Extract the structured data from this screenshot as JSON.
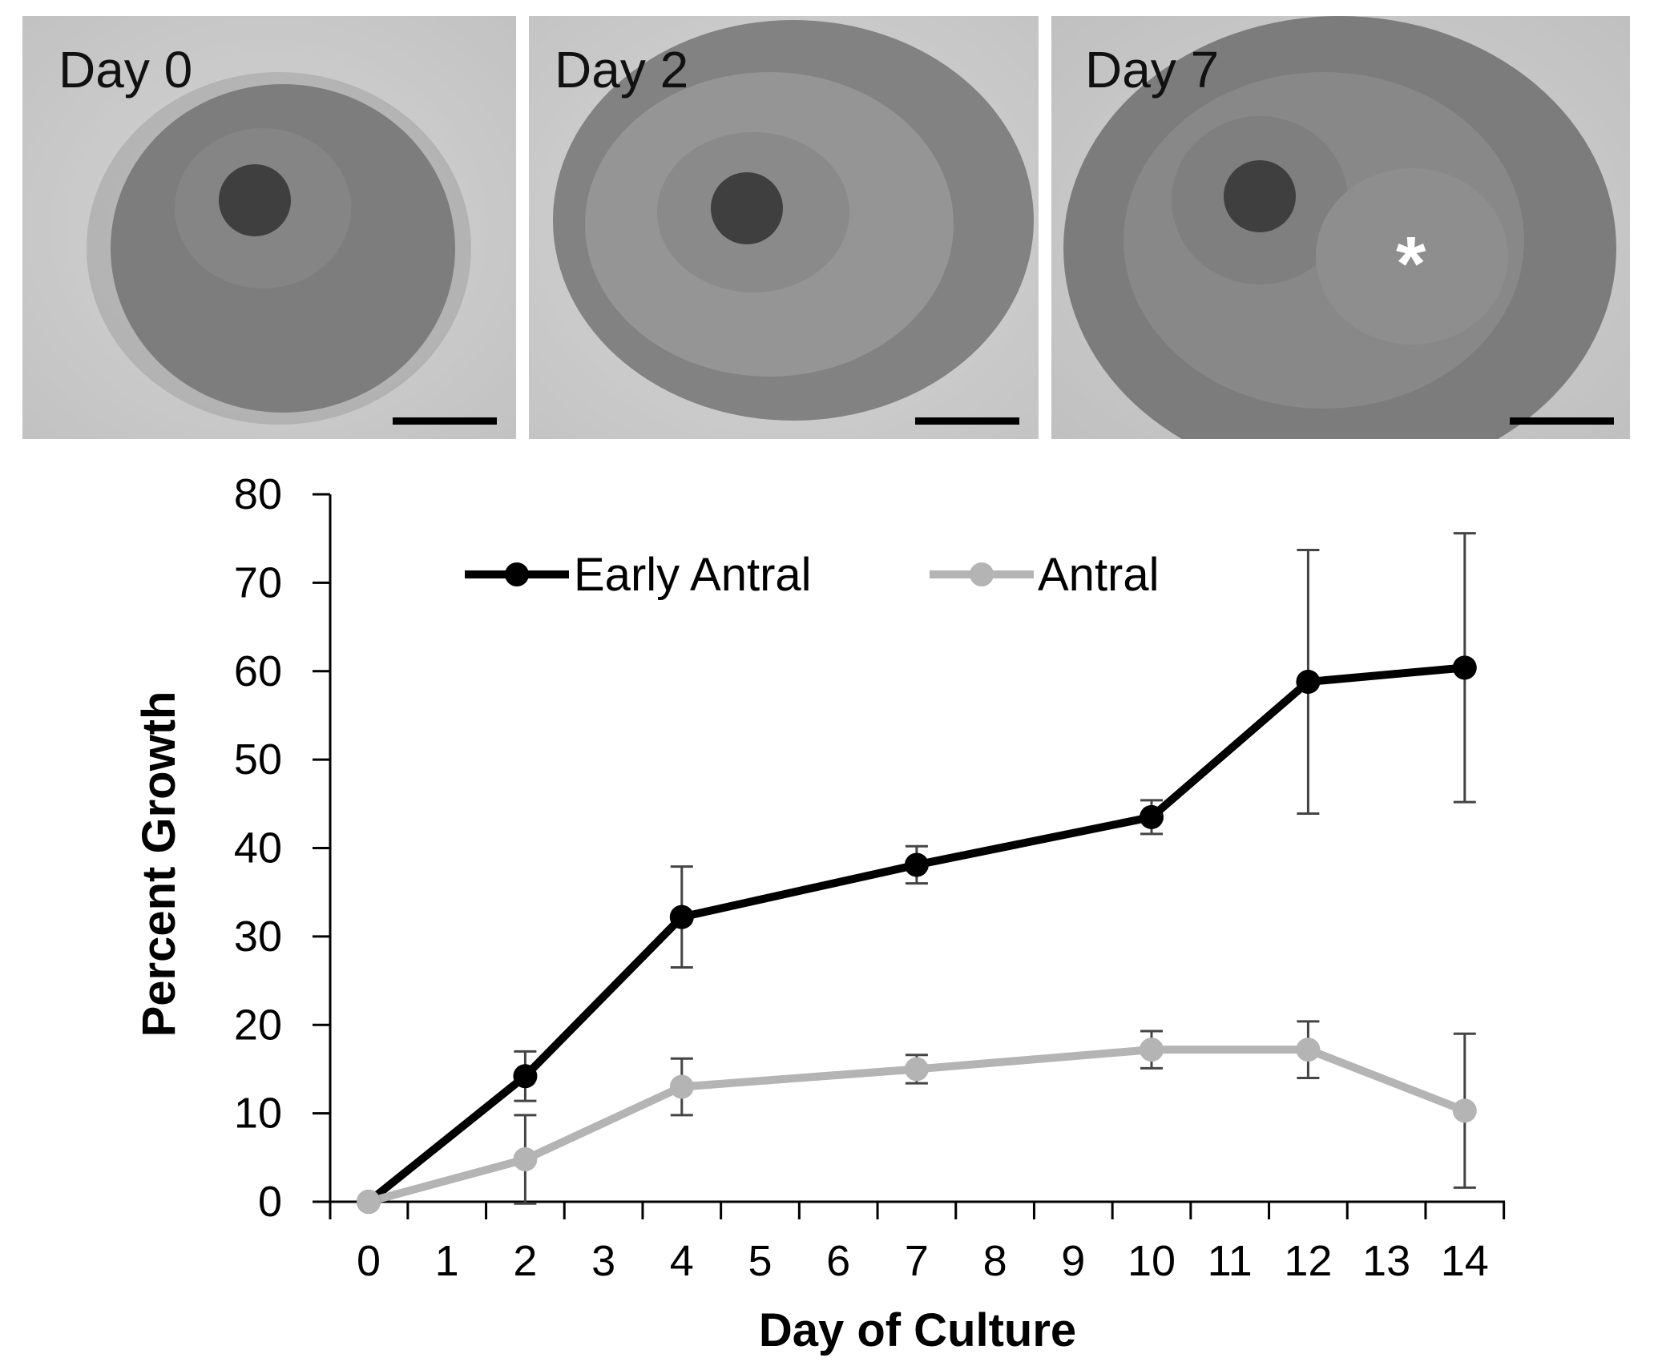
{
  "panels": [
    {
      "label": "Day 0"
    },
    {
      "label": "Day 2"
    },
    {
      "label": "Day 7",
      "marker": "*"
    }
  ],
  "chart_data": {
    "type": "line",
    "xlabel": "Day of Culture",
    "ylabel": "Percent Growth",
    "categories": [
      "0",
      "1",
      "2",
      "3",
      "4",
      "5",
      "6",
      "7",
      "8",
      "9",
      "10",
      "11",
      "12",
      "13",
      "14"
    ],
    "ylim": [
      0,
      80
    ],
    "yticks": [
      0,
      10,
      20,
      30,
      40,
      50,
      60,
      70,
      80
    ],
    "legend_position": "top",
    "series": [
      {
        "name": "Early Antral",
        "color": "#000000",
        "x": [
          0,
          2,
          4,
          7,
          10,
          12,
          14
        ],
        "values": [
          0,
          14.2,
          32.2,
          38.1,
          43.5,
          58.8,
          60.4
        ],
        "error": [
          0,
          2.8,
          5.7,
          2.1,
          1.9,
          14.9,
          15.2
        ]
      },
      {
        "name": "Antral",
        "color": "#b4b4b4",
        "x": [
          0,
          2,
          4,
          7,
          10,
          12,
          14
        ],
        "values": [
          0,
          4.8,
          13.0,
          15.0,
          17.2,
          17.2,
          10.3
        ],
        "error": [
          0,
          5.0,
          3.2,
          1.6,
          2.1,
          3.2,
          8.7
        ]
      }
    ]
  }
}
